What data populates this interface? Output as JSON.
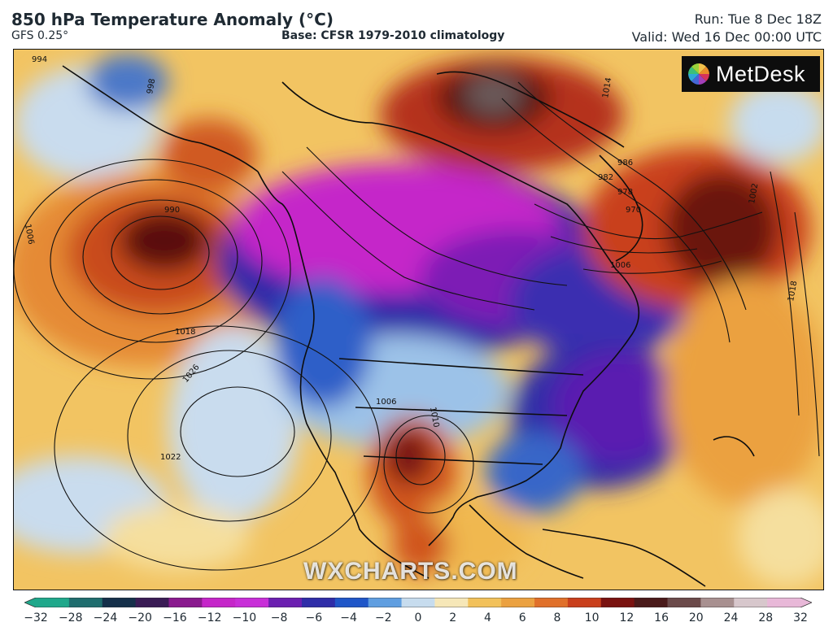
{
  "header": {
    "title": "850 hPa Temperature Anomaly (°C)",
    "model": "GFS 0.25°",
    "base": "Base: CFSR 1979-2010 climatology",
    "run": "Run: Tue 8 Dec 18Z",
    "valid": "Valid: Wed 16 Dec 00:00 UTC"
  },
  "logo": {
    "text": "MetDesk",
    "icon": "pinwheel-logo-icon"
  },
  "watermark": "WXCHARTS.COM",
  "isobar_labels": [
    "994",
    "998",
    "1002",
    "1006",
    "1010",
    "1014",
    "1018",
    "1022",
    "1026",
    "990",
    "986",
    "982",
    "978",
    "970",
    "1006",
    "1010",
    "1018",
    "1002"
  ],
  "colorbar": {
    "ticks": [
      "−32",
      "−28",
      "−24",
      "−20",
      "−16",
      "−12",
      "−10",
      "−8",
      "−6",
      "−4",
      "−2",
      "0",
      "2",
      "4",
      "6",
      "8",
      "10",
      "12",
      "16",
      "20",
      "24",
      "28",
      "32"
    ],
    "colors": [
      "#1fa88b",
      "#1f6d6e",
      "#15304a",
      "#3a1c55",
      "#8a1a8e",
      "#c526c9",
      "#c82fd8",
      "#6b1fb0",
      "#2f2da8",
      "#1f56c8",
      "#5f9ee0",
      "#c7dcee",
      "#f6e7b8",
      "#f2c15a",
      "#eba140",
      "#e0702a",
      "#c93f1c",
      "#7a1210",
      "#4a1a1a",
      "#6b4a4a",
      "#a89090",
      "#d7c7cc",
      "#e8b8d8"
    ]
  },
  "colors": {
    "cold_extreme": "#c526c9",
    "cold": "#2f2da8",
    "warm": "#e0702a",
    "hot": "#6a1210",
    "neutral": "#f6e7b8"
  }
}
